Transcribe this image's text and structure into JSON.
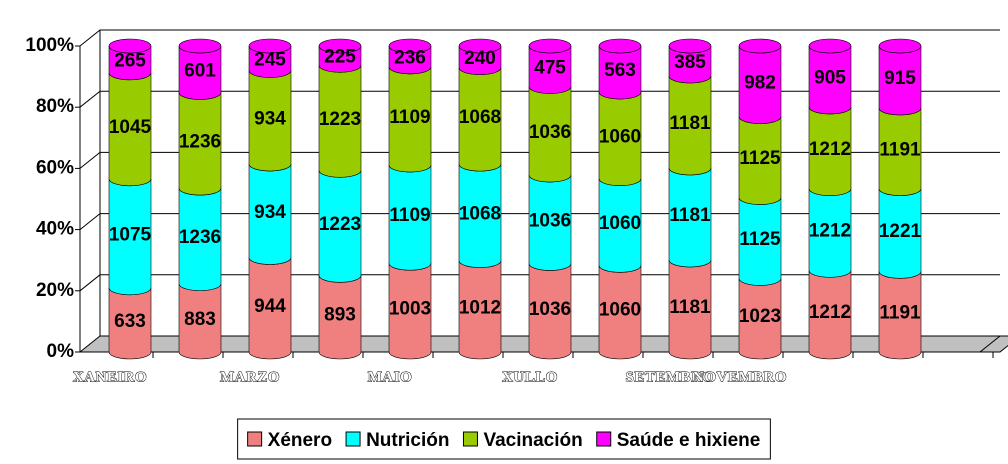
{
  "chart_data": {
    "type": "bar",
    "stacking": "percent",
    "categories": [
      "XANEIRO",
      null,
      "MARZO",
      null,
      "MAIO",
      null,
      "XULLO",
      null,
      "SETEMBRO",
      "NOVEMBRO",
      null,
      null
    ],
    "series": [
      {
        "name": "Xénero",
        "color": "#f08080",
        "values": [
          633,
          883,
          944,
          893,
          1003,
          1012,
          1036,
          1060,
          1181,
          1023,
          1212,
          1191
        ]
      },
      {
        "name": "Nutrición",
        "color": "#00ffff",
        "values": [
          1075,
          1236,
          934,
          1223,
          1109,
          1068,
          1036,
          1060,
          1181,
          1125,
          1212,
          1221
        ]
      },
      {
        "name": "Vacinación",
        "color": "#99cc00",
        "values": [
          1045,
          1236,
          934,
          1223,
          1109,
          1068,
          1036,
          1060,
          1181,
          1125,
          1212,
          1191
        ]
      },
      {
        "name": "Saúde e hixiene",
        "color": "#ff00ff",
        "values": [
          265,
          601,
          245,
          225,
          236,
          240,
          475,
          563,
          385,
          982,
          905,
          915
        ]
      }
    ],
    "ylim": [
      0,
      100
    ],
    "yticks": [
      {
        "value": 0,
        "label": "0%"
      },
      {
        "value": 20,
        "label": "20%"
      },
      {
        "value": 40,
        "label": "40%"
      },
      {
        "value": 60,
        "label": "60%"
      },
      {
        "value": 80,
        "label": "80%"
      },
      {
        "value": 100,
        "label": "100%"
      }
    ],
    "grid": true,
    "legend": "bottom"
  }
}
